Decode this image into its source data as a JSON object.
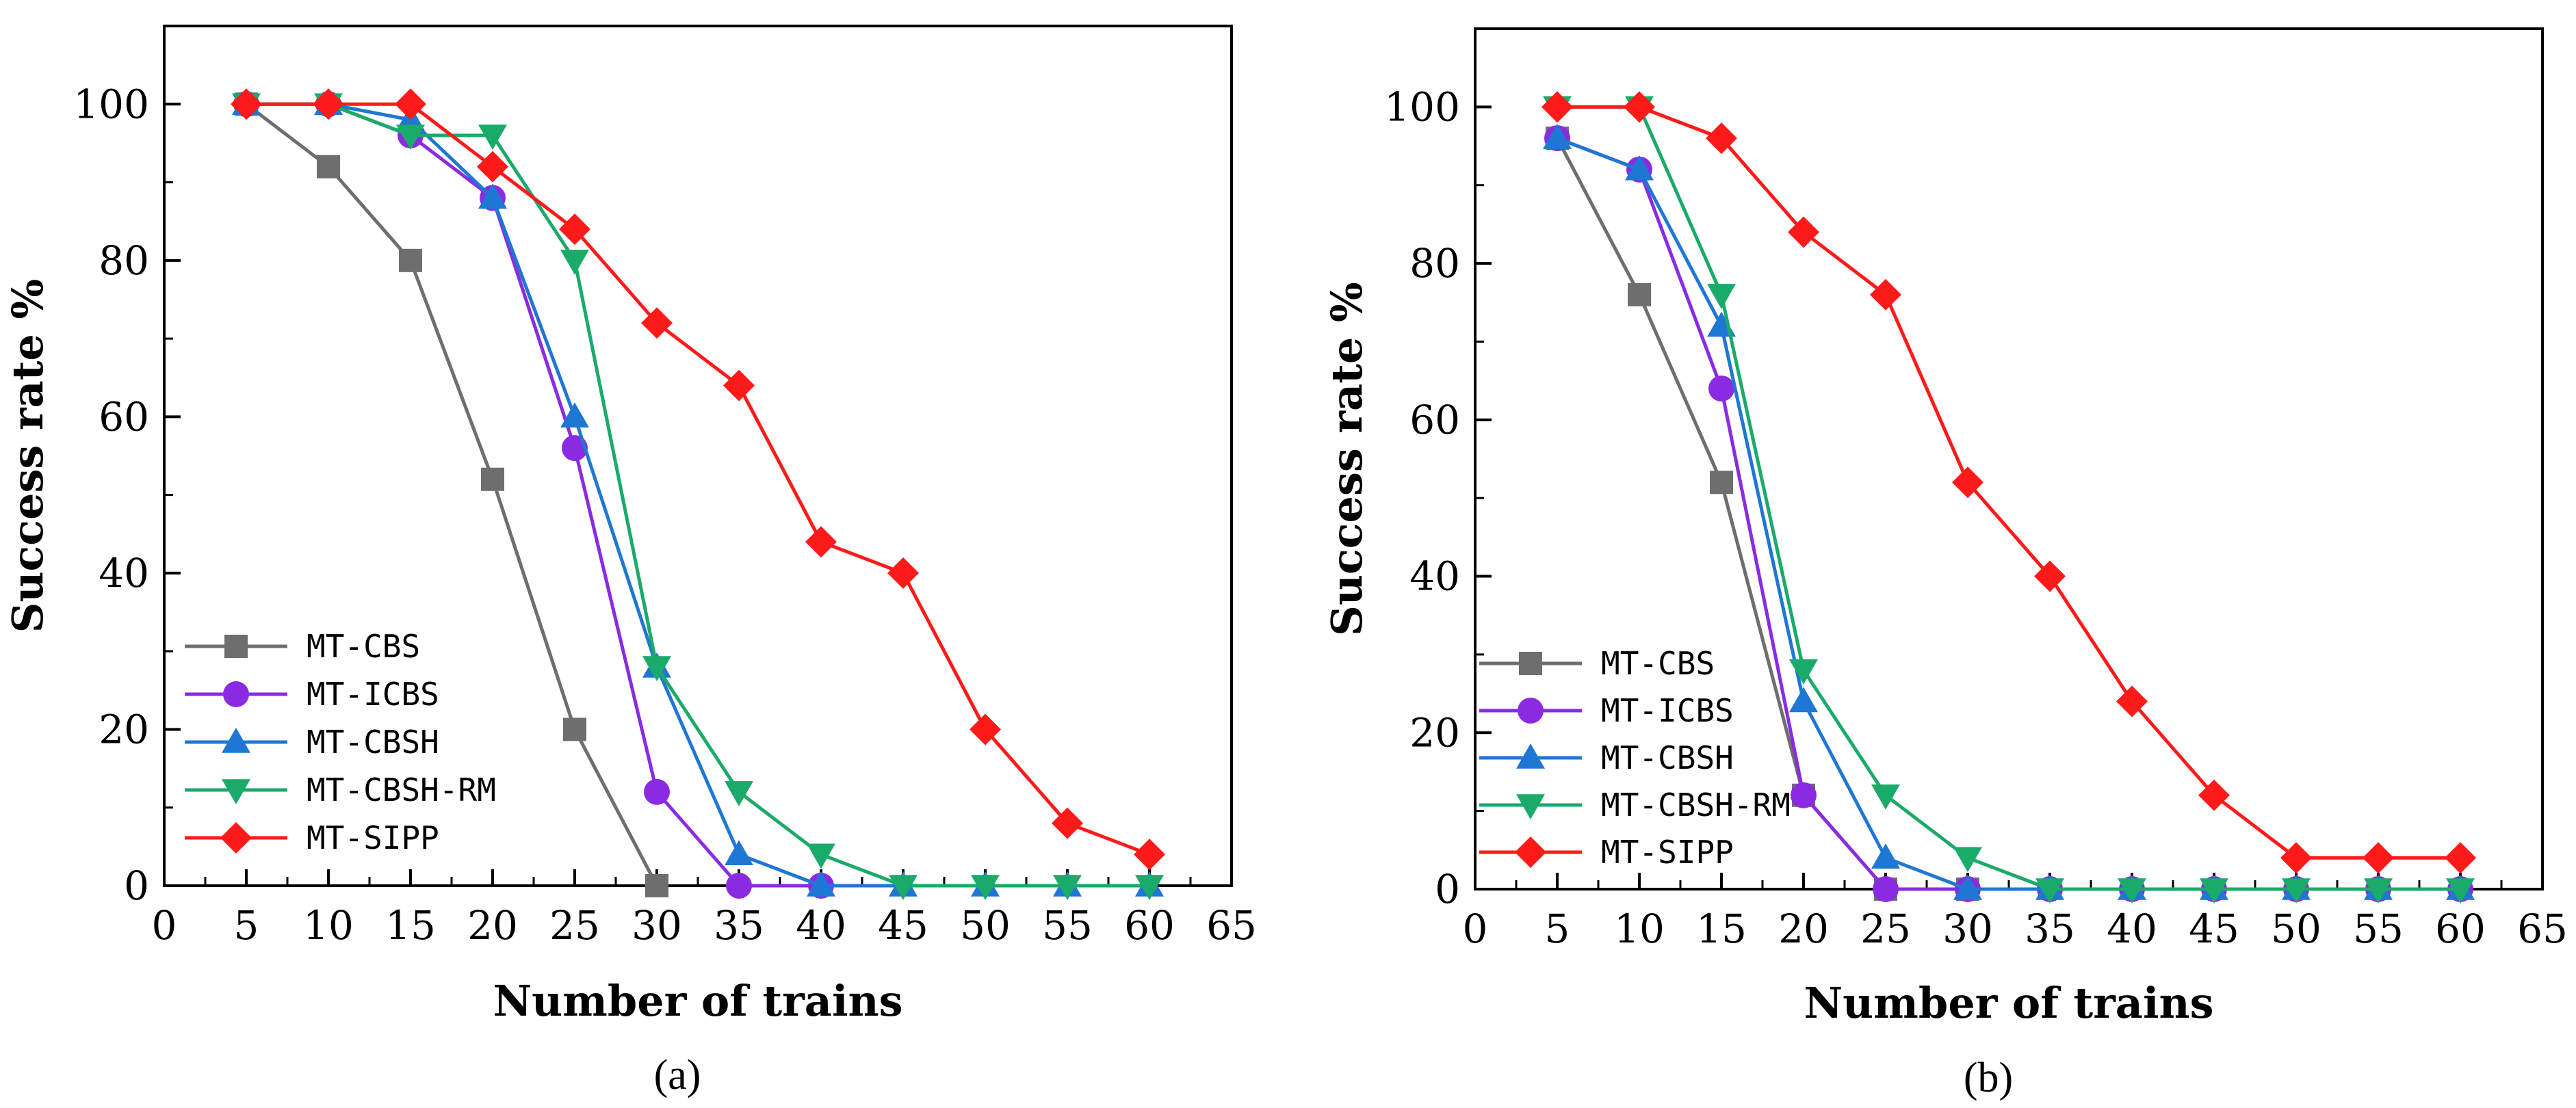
{
  "chart_data": [
    {
      "type": "line",
      "panel_label": "(a)",
      "xlabel": "Number of trains",
      "ylabel": "Success rate %",
      "xlim": [
        0,
        65
      ],
      "ylim": [
        0,
        110
      ],
      "xticks": [
        0,
        5,
        10,
        15,
        20,
        25,
        30,
        35,
        40,
        45,
        50,
        55,
        60,
        65
      ],
      "yticks": [
        0,
        20,
        40,
        60,
        80,
        100
      ],
      "legend_position": "bottom-left",
      "x": [
        5,
        10,
        15,
        20,
        25,
        30,
        35,
        40,
        45,
        50,
        55,
        60
      ],
      "series": [
        {
          "name": "MT-CBS",
          "color": "#6e6e6e",
          "marker": "square",
          "x": [
            5,
            10,
            15,
            20,
            25,
            30
          ],
          "values": [
            100,
            92,
            80,
            52,
            20,
            0
          ]
        },
        {
          "name": "MT-ICBS",
          "color": "#8a2be2",
          "marker": "circle",
          "x": [
            5,
            10,
            15,
            20,
            25,
            30,
            35,
            40
          ],
          "values": [
            100,
            100,
            96,
            88,
            56,
            12,
            0,
            0
          ]
        },
        {
          "name": "MT-CBSH",
          "color": "#1f77d4",
          "marker": "triangle-up",
          "x": [
            5,
            10,
            15,
            20,
            25,
            30,
            35,
            40,
            45,
            50,
            55,
            60
          ],
          "values": [
            100,
            100,
            98,
            88,
            60,
            28,
            4,
            0,
            0,
            0,
            0,
            0
          ]
        },
        {
          "name": "MT-CBSH-RM",
          "color": "#1aaa6a",
          "marker": "triangle-down",
          "x": [
            5,
            10,
            15,
            20,
            25,
            30,
            35,
            40,
            45,
            50,
            55,
            60
          ],
          "values": [
            100,
            100,
            96,
            96,
            80,
            28,
            12,
            4,
            0,
            0,
            0,
            0
          ]
        },
        {
          "name": "MT-SIPP",
          "color": "#ff1a1a",
          "marker": "diamond",
          "x": [
            5,
            10,
            15,
            20,
            25,
            30,
            35,
            40,
            45,
            50,
            55,
            60
          ],
          "values": [
            100,
            100,
            100,
            92,
            84,
            72,
            64,
            44,
            40,
            20,
            8,
            4
          ]
        }
      ]
    },
    {
      "type": "line",
      "panel_label": "(b)",
      "xlabel": "Number of trains",
      "ylabel": "Success rate %",
      "xlim": [
        0,
        65
      ],
      "ylim": [
        0,
        110
      ],
      "xticks": [
        0,
        5,
        10,
        15,
        20,
        25,
        30,
        35,
        40,
        45,
        50,
        55,
        60,
        65
      ],
      "yticks": [
        0,
        20,
        40,
        60,
        80,
        100
      ],
      "legend_position": "bottom-left",
      "x": [
        5,
        10,
        15,
        20,
        25,
        30,
        35,
        40,
        45,
        50,
        55,
        60
      ],
      "series": [
        {
          "name": "MT-CBS",
          "color": "#6e6e6e",
          "marker": "square",
          "x": [
            5,
            10,
            15,
            20,
            25,
            30
          ],
          "values": [
            96,
            76,
            52,
            12,
            0,
            0
          ]
        },
        {
          "name": "MT-ICBS",
          "color": "#8a2be2",
          "marker": "circle",
          "x": [
            5,
            10,
            15,
            20,
            25,
            30,
            35,
            40,
            45,
            50,
            55,
            60
          ],
          "values": [
            96,
            92,
            64,
            12,
            0,
            0,
            0,
            0,
            0,
            0,
            0,
            0
          ]
        },
        {
          "name": "MT-CBSH",
          "color": "#1f77d4",
          "marker": "triangle-up",
          "x": [
            5,
            10,
            15,
            20,
            25,
            30,
            35,
            40,
            45,
            50,
            55,
            60
          ],
          "values": [
            96,
            92,
            72,
            24,
            4,
            0,
            0,
            0,
            0,
            0,
            0,
            0
          ]
        },
        {
          "name": "MT-CBSH-RM",
          "color": "#1aaa6a",
          "marker": "triangle-down",
          "x": [
            5,
            10,
            15,
            20,
            25,
            30,
            35,
            40,
            45,
            50,
            55,
            60
          ],
          "values": [
            100,
            100,
            76,
            28,
            12,
            4,
            0,
            0,
            0,
            0,
            0,
            0
          ]
        },
        {
          "name": "MT-SIPP",
          "color": "#ff1a1a",
          "marker": "diamond",
          "x": [
            5,
            10,
            15,
            20,
            25,
            30,
            35,
            40,
            45,
            50,
            55,
            60
          ],
          "values": [
            100,
            100,
            96,
            84,
            76,
            52,
            40,
            24,
            12,
            4,
            4,
            4
          ]
        }
      ]
    }
  ]
}
